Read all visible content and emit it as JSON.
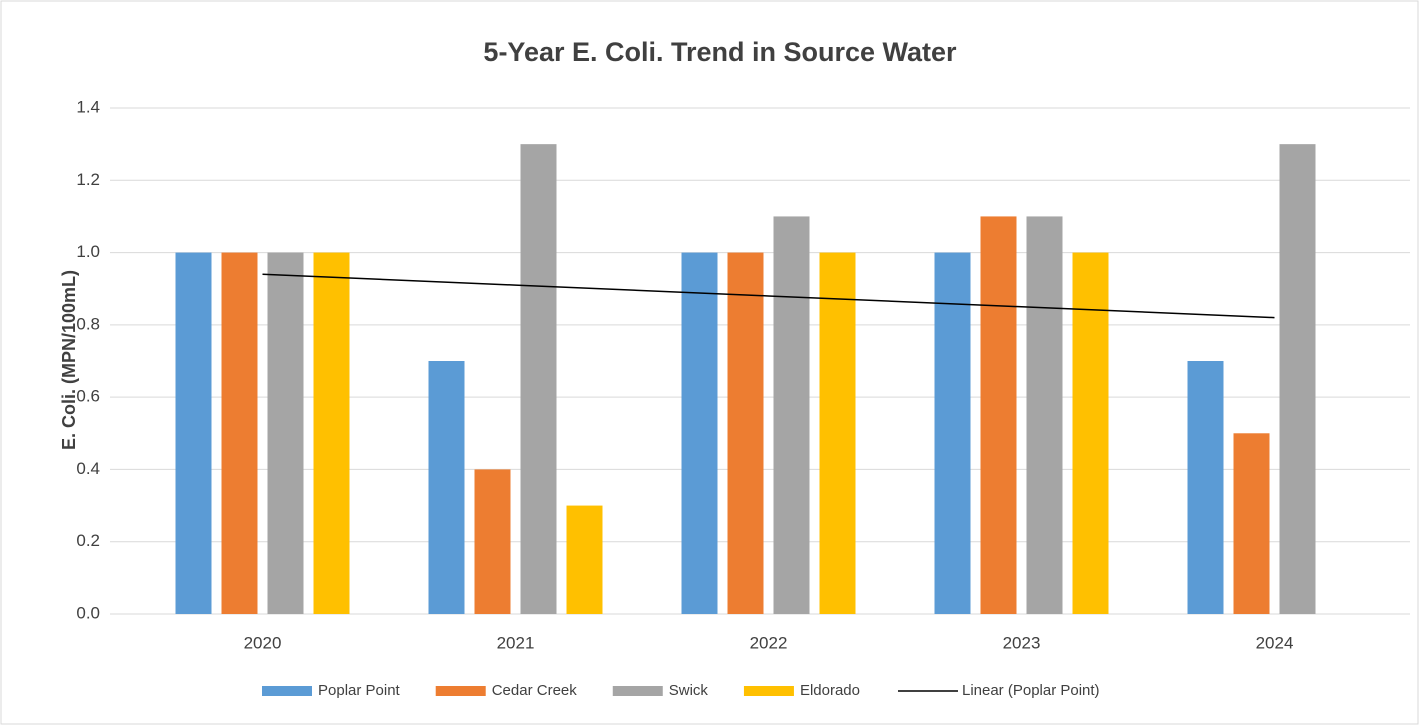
{
  "chart_data": {
    "type": "bar",
    "title": "5-Year E. Coli. Trend in Source Water",
    "y_label": "E. Coli. (MPN/100mL)",
    "categories": [
      "2020",
      "2021",
      "2022",
      "2023",
      "2024"
    ],
    "series": [
      {
        "name": "Poplar Point",
        "color": "#5b9bd5",
        "values": [
          1.0,
          0.7,
          1.0,
          1.0,
          0.7
        ]
      },
      {
        "name": "Cedar Creek",
        "color": "#ed7d31",
        "values": [
          1.0,
          0.4,
          1.0,
          1.1,
          0.5
        ]
      },
      {
        "name": "Swick",
        "color": "#a5a5a5",
        "values": [
          1.0,
          1.3,
          1.1,
          1.1,
          1.3
        ]
      },
      {
        "name": "Eldorado",
        "color": "#ffc000",
        "values": [
          1.0,
          0.3,
          1.0,
          1.0,
          null
        ]
      },
      {
        "name": "Linear (Poplar Point)",
        "type": "line",
        "color": "#000000",
        "values": [
          0.94,
          0.91,
          0.88,
          0.85,
          0.82
        ]
      }
    ],
    "ylim": [
      0,
      1.4
    ],
    "yticks": [
      {
        "value": 0,
        "label": "0.0"
      },
      {
        "value": 0.2,
        "label": "0.2"
      },
      {
        "value": 0.4,
        "label": "0.4"
      },
      {
        "value": 0.6,
        "label": "0.6"
      },
      {
        "value": 0.8,
        "label": "0.8"
      },
      {
        "value": 1.0,
        "label": "1.0"
      },
      {
        "value": 1.2,
        "label": "1.2"
      },
      {
        "value": 1.4,
        "label": "1.4"
      }
    ],
    "grid": true,
    "legend": "bottom"
  }
}
